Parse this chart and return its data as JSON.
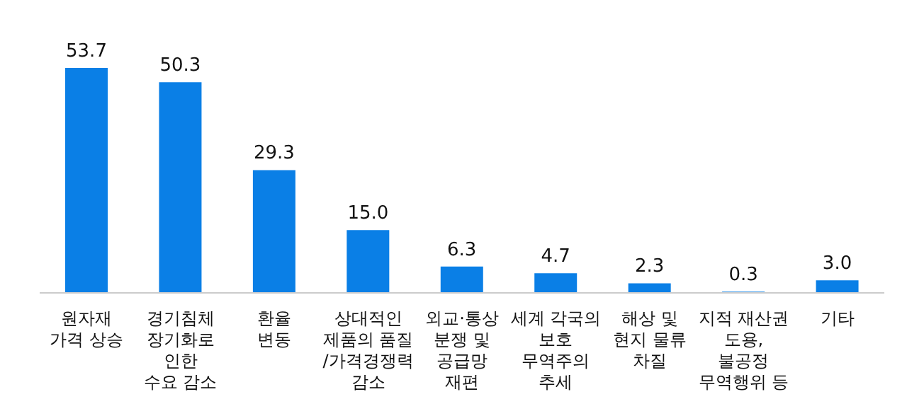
{
  "chart_data": {
    "type": "bar",
    "categories": [
      "원자재\n가격 상승",
      "경기침체\n장기화로\n인한\n수요 감소",
      "환율\n변동",
      "상대적인\n제품의 품질\n/가격경쟁력\n감소",
      "외교·통상\n분쟁 및\n공급망\n재편",
      "세계 각국의\n보호\n무역주의\n추세",
      "해상 및\n현지 물류\n차질",
      "지적 재산권\n도용,\n불공정\n무역행위 등",
      "기타"
    ],
    "values": [
      53.7,
      50.3,
      29.3,
      15.0,
      6.3,
      4.7,
      2.3,
      0.3,
      3.0
    ],
    "value_labels": [
      "53.7",
      "50.3",
      "29.3",
      "15.0",
      "6.3",
      "4.7",
      "2.3",
      "0.3",
      "3.0"
    ],
    "color": "#0a7fe6",
    "grid": false,
    "legend": false
  }
}
